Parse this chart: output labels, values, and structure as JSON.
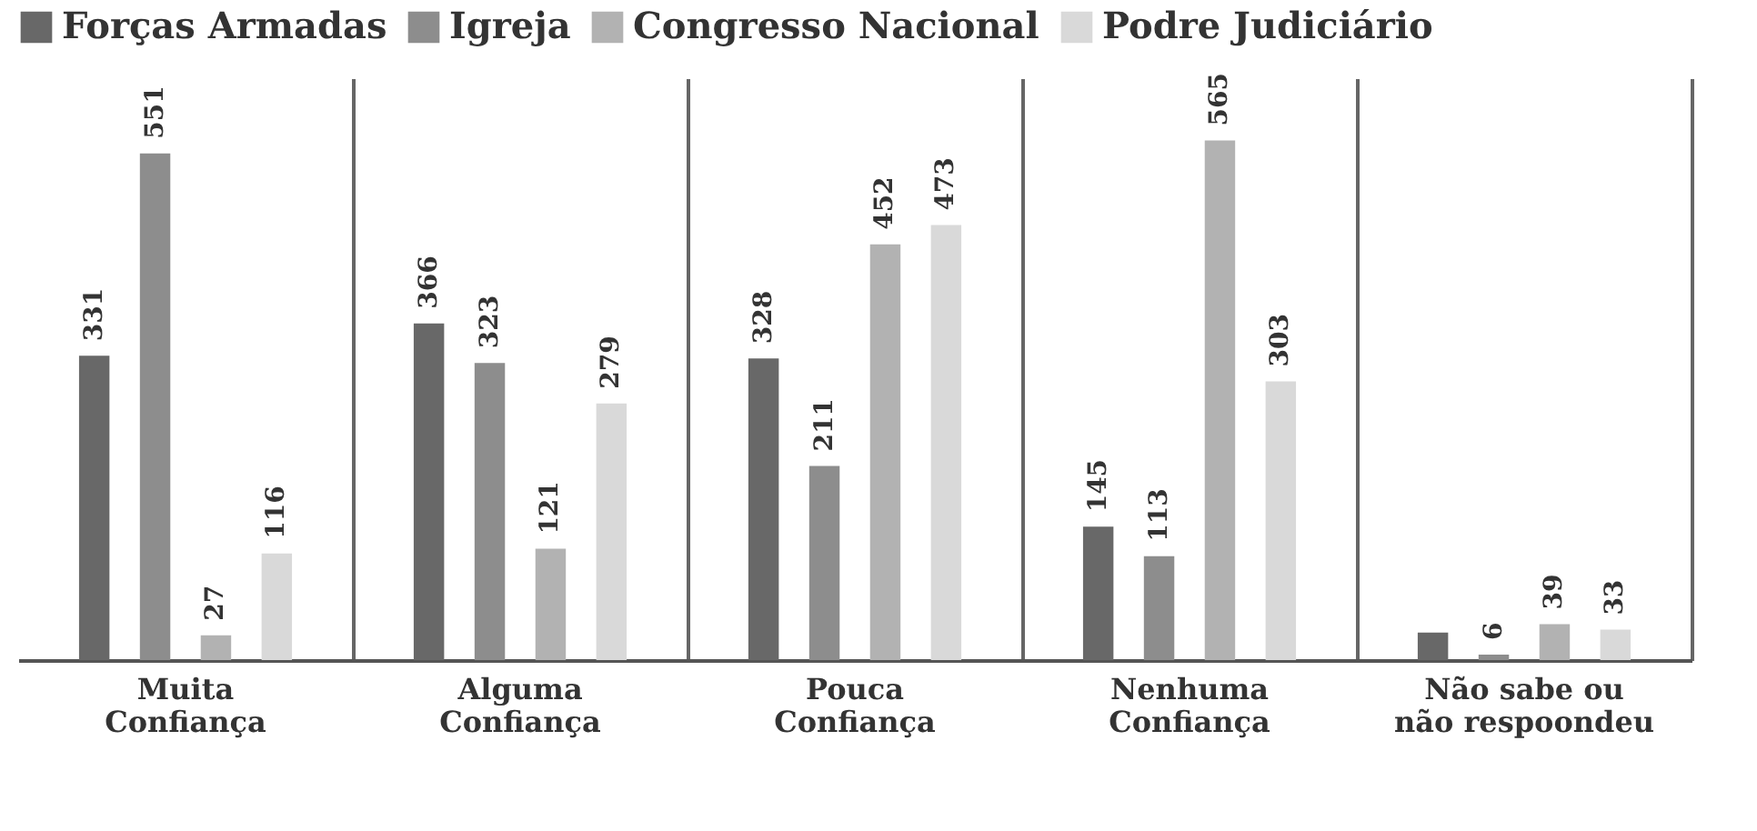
{
  "chart_data": {
    "type": "bar",
    "categories": [
      "Muita Confiança",
      "Alguma Confiança",
      "Pouca Confiança",
      "Nenhuma Confiança",
      "Não sabe ou não respoondeu"
    ],
    "series": [
      {
        "name": "Forças Armadas",
        "color": "#686868",
        "values": [
          331,
          366,
          328,
          145,
          30
        ],
        "value_labels": [
          "331",
          "366",
          "328",
          "145",
          null
        ]
      },
      {
        "name": "Igreja",
        "color": "#8d8d8d",
        "values": [
          551,
          323,
          211,
          113,
          6
        ],
        "value_labels": [
          "551",
          "323",
          "211",
          "113",
          "6"
        ]
      },
      {
        "name": "Congresso Nacional",
        "color": "#b2b2b2",
        "values": [
          27,
          121,
          452,
          565,
          39
        ],
        "value_labels": [
          "27",
          "121",
          "452",
          "565",
          "39"
        ]
      },
      {
        "name": "Podre Judiciário",
        "color": "#d9d9d9",
        "values": [
          116,
          279,
          473,
          303,
          33
        ],
        "value_labels": [
          "116",
          "279",
          "473",
          "303",
          "33"
        ]
      }
    ],
    "legend": "top",
    "grid": "x"
  }
}
